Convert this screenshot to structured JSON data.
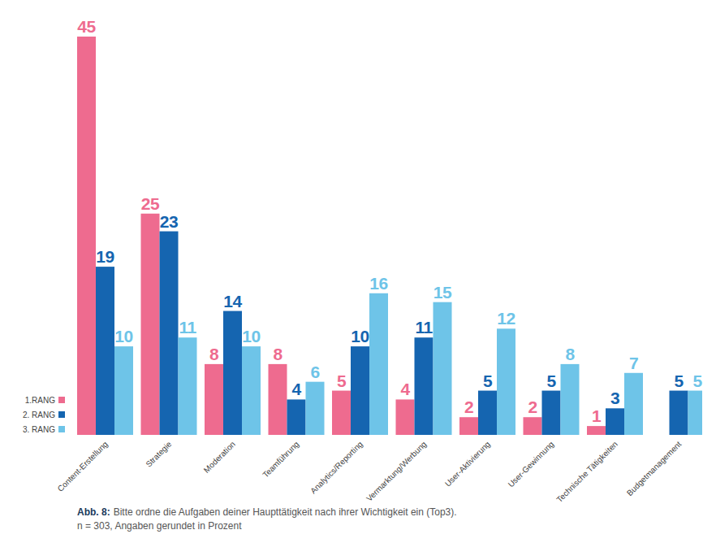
{
  "chart_data": {
    "type": "bar",
    "figure_label": "Abb. 8:",
    "title": "Bitte ordne die Aufgaben deiner Haupttätigkeit nach ihrer Wichtigkeit ein (Top3).",
    "subtitle": "n = 303, Angaben gerundet in Prozent",
    "categories": [
      "Content-Erstellung",
      "Strategie",
      "Moderation",
      "Teamführung",
      "Analytics/Reporting",
      "Vermarktung/Werbung",
      "User-Aktivierung",
      "User-Gewinnung",
      "Technische Tätigkeiten",
      "Budgetmanagement"
    ],
    "series": [
      {
        "name": "1.RANG",
        "color": "#ee6b8f",
        "values": [
          45,
          25,
          8,
          8,
          5,
          4,
          2,
          2,
          1,
          null
        ]
      },
      {
        "name": "2. RANG",
        "color": "#1565b0",
        "values": [
          19,
          23,
          14,
          4,
          10,
          11,
          5,
          5,
          3,
          5
        ]
      },
      {
        "name": "3. RANG",
        "color": "#6ec4e8",
        "values": [
          10,
          11,
          10,
          6,
          16,
          15,
          12,
          8,
          7,
          5
        ]
      }
    ],
    "ylim": [
      0,
      45
    ],
    "data_labels": true,
    "tick_labels": "x",
    "grid": false,
    "legend": "bottom-left"
  }
}
